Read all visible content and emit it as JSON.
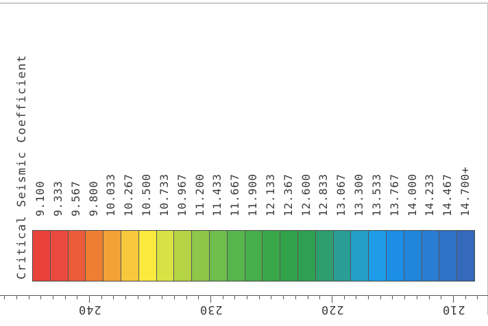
{
  "legend": {
    "title": "Critical Seismic Coefficient",
    "labels": [
      "9.100",
      "9.333",
      "9.567",
      "9.800",
      "10.033",
      "10.267",
      "10.500",
      "10.733",
      "10.967",
      "11.200",
      "11.433",
      "11.667",
      "11.900",
      "12.133",
      "12.367",
      "12.600",
      "12.833",
      "13.067",
      "13.300",
      "13.533",
      "13.767",
      "14.000",
      "14.233",
      "14.467",
      "14.700+"
    ],
    "colors": [
      "#e8423a",
      "#ea4a3e",
      "#ec5c3a",
      "#ee7f32",
      "#f3a236",
      "#f8c83c",
      "#fbe93e",
      "#d9e244",
      "#b4d446",
      "#8ec64a",
      "#6ebe4c",
      "#56b64c",
      "#46ae4a",
      "#3aa84a",
      "#33a34b",
      "#2fa052",
      "#2f9e6e",
      "#2a9e96",
      "#24a0c8",
      "#1e9ce8",
      "#1c8ee6",
      "#2086dc",
      "#2a7dd2",
      "#2f72c6",
      "#3569bc"
    ]
  },
  "ruler": {
    "labels": [
      "240",
      "230",
      "220",
      "210"
    ]
  }
}
